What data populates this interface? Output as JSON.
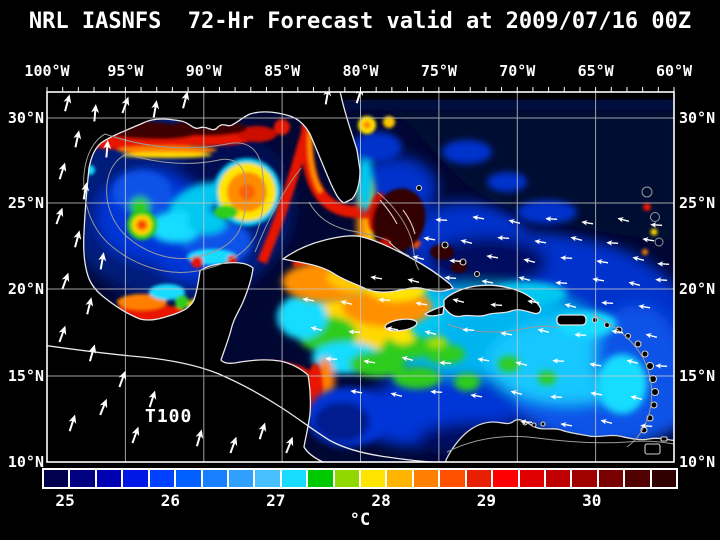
{
  "title": "NRL IASNFS  72-Hr Forecast valid at 2009/07/16 00Z",
  "map": {
    "variable_label": "T100",
    "lon_ticks": [
      "100°W",
      "95°W",
      "90°W",
      "85°W",
      "80°W",
      "75°W",
      "70°W",
      "65°W",
      "60°W"
    ],
    "lat_ticks_left": [
      "30°N",
      "25°N",
      "20°N",
      "15°N",
      "10°N"
    ],
    "lat_ticks_right": [
      "30°N",
      "25°N",
      "20°N",
      "15°N",
      "10°N"
    ]
  },
  "colorbar": {
    "unit_label": "°C",
    "tick_labels": [
      "25",
      "26",
      "27",
      "28",
      "29",
      "30"
    ],
    "tick_values": [
      25,
      26,
      27,
      28,
      29,
      30
    ],
    "min": 24.8,
    "max": 30.8,
    "cell_colors": [
      "#00004e",
      "#000080",
      "#0000b3",
      "#0018e6",
      "#0040ff",
      "#0060ff",
      "#1880ff",
      "#30a0ff",
      "#48c0ff",
      "#18dcff",
      "#00c800",
      "#90d800",
      "#ffe400",
      "#ffb400",
      "#ff8000",
      "#ff5000",
      "#e62000",
      "#ff0000",
      "#e00000",
      "#c00000",
      "#a00000",
      "#780000",
      "#500000",
      "#300000"
    ]
  },
  "chart_data": {
    "type": "heatmap",
    "title": "NRL IASNFS 72-Hr Forecast valid at 2009/07/16 00Z",
    "variable": "T100",
    "unit": "°C",
    "x_axis_ticks": [
      "100°W",
      "95°W",
      "90°W",
      "85°W",
      "80°W",
      "75°W",
      "70°W",
      "65°W",
      "60°W"
    ],
    "y_axis_ticks": [
      "30°N",
      "25°N",
      "20°N",
      "15°N",
      "10°N"
    ],
    "lon_range_deg_W": [
      100,
      60
    ],
    "lat_range_deg_N": [
      10,
      31.5
    ],
    "colorbar": {
      "tick_labels": [
        25,
        26,
        27,
        28,
        29,
        30
      ],
      "range_degC": [
        24.8,
        30.8
      ],
      "n_cells": 24,
      "cell_step_degC": 0.25
    }
  }
}
